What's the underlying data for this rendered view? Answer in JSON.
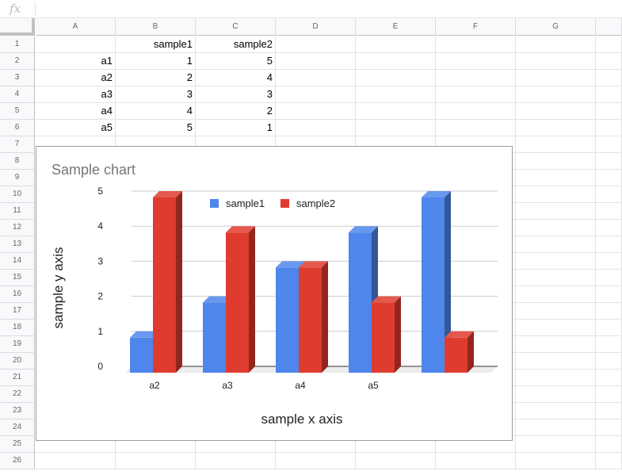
{
  "formula_bar": {
    "fx_label": "fx",
    "value": ""
  },
  "columns": [
    "A",
    "B",
    "C",
    "D",
    "E",
    "F",
    "G"
  ],
  "rows": [
    "1",
    "2",
    "3",
    "4",
    "5",
    "6",
    "7",
    "8",
    "9",
    "10",
    "11",
    "12",
    "13",
    "14",
    "15",
    "16",
    "17",
    "18",
    "19",
    "20",
    "21",
    "22",
    "23",
    "24",
    "25",
    "26"
  ],
  "cells": [
    [
      "",
      "sample1",
      "sample2"
    ],
    [
      "a1",
      "1",
      "5"
    ],
    [
      "a2",
      "2",
      "4"
    ],
    [
      "a3",
      "3",
      "3"
    ],
    [
      "a4",
      "4",
      "2"
    ],
    [
      "a5",
      "5",
      "1"
    ]
  ],
  "chart_data": {
    "type": "bar",
    "title": "Sample chart",
    "xlabel": "sample x axis",
    "ylabel": "sample y axis",
    "categories": [
      "a1",
      "a2",
      "a3",
      "a4",
      "a5"
    ],
    "tick_labels": [
      "a2",
      "a3",
      "a4",
      "a5",
      ""
    ],
    "series": [
      {
        "name": "sample1",
        "values": [
          1,
          2,
          3,
          4,
          5
        ],
        "color": "#4f86ec"
      },
      {
        "name": "sample2",
        "values": [
          5,
          4,
          3,
          2,
          1
        ],
        "color": "#e03b2f"
      }
    ],
    "ylim": [
      0,
      5
    ],
    "yticks": [
      0,
      1,
      2,
      3,
      4,
      5
    ],
    "grid": true,
    "legend_position": "top",
    "three_d": true
  }
}
